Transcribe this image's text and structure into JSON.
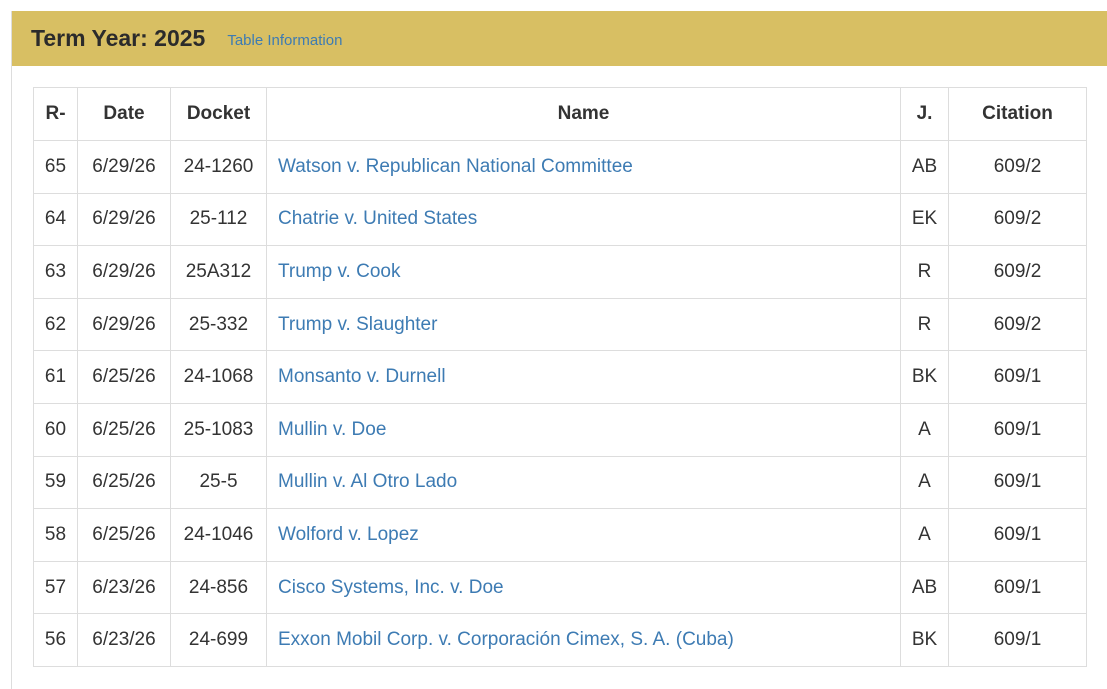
{
  "header": {
    "title": "Term Year: 2025",
    "link": "Table Information"
  },
  "table": {
    "columns": [
      "R-",
      "Date",
      "Docket",
      "Name",
      "J.",
      "Citation"
    ],
    "rows": [
      [
        "65",
        "6/29/26",
        "24-1260",
        "Watson v. Republican National Committee",
        "AB",
        "609/2"
      ],
      [
        "64",
        "6/29/26",
        "25-112",
        "Chatrie v. United States",
        "EK",
        "609/2"
      ],
      [
        "63",
        "6/29/26",
        "25A312",
        "Trump v. Cook",
        "R",
        "609/2"
      ],
      [
        "62",
        "6/29/26",
        "25-332",
        "Trump v. Slaughter",
        "R",
        "609/2"
      ],
      [
        "61",
        "6/25/26",
        "24-1068",
        "Monsanto v. Durnell",
        "BK",
        "609/1"
      ],
      [
        "60",
        "6/25/26",
        "25-1083",
        "Mullin v. Doe",
        "A",
        "609/1"
      ],
      [
        "59",
        "6/25/26",
        "25-5",
        "Mullin v. Al Otro Lado",
        "A",
        "609/1"
      ],
      [
        "58",
        "6/25/26",
        "24-1046",
        "Wolford v. Lopez",
        "A",
        "609/1"
      ],
      [
        "57",
        "6/23/26",
        "24-856",
        "Cisco Systems, Inc. v. Doe",
        "AB",
        "609/1"
      ],
      [
        "56",
        "6/23/26",
        "24-699",
        "Exxon Mobil Corp. v. Corporación Cimex, S. A. (Cuba)",
        "BK",
        "609/1"
      ]
    ]
  }
}
